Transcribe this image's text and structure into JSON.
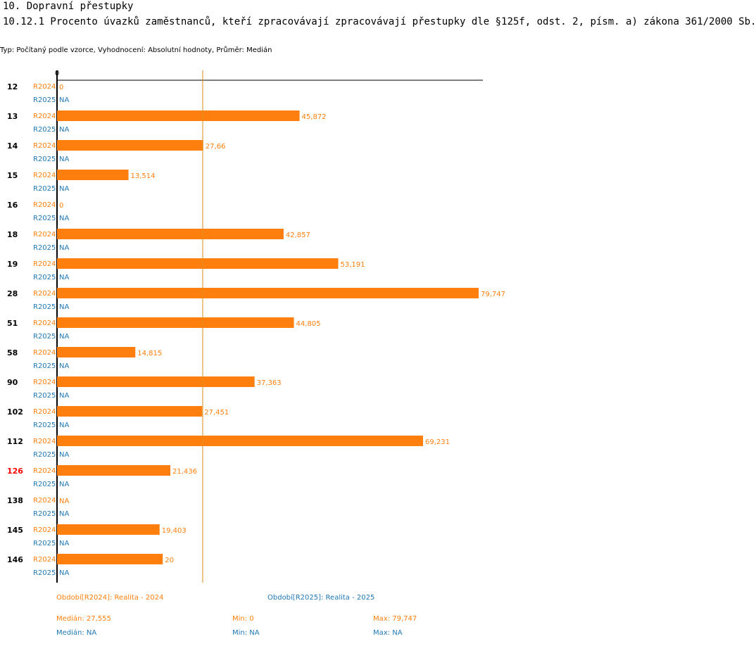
{
  "header": {
    "section": "10. Dopravní přestupky",
    "title": "10.12.1 Procento úvazků zaměstnanců, kteří zpracovávají zpracovávají přestupky dle §125f, odst. 2, písm. a) zákona 361/2000 Sb.",
    "subtitle": "Typ: Počítaný podle vzorce, Vyhodnocení: Absolutní hodnoty, Průměr: Medián"
  },
  "chart_data": {
    "type": "bar",
    "orientation": "horizontal",
    "x_axis_zero_label": "0",
    "xlim": [
      0,
      79.747
    ],
    "reference_line": {
      "type": "median",
      "value": 27.555
    },
    "highlighted_category": "126",
    "categories": [
      "12",
      "13",
      "14",
      "15",
      "16",
      "18",
      "19",
      "28",
      "51",
      "58",
      "90",
      "102",
      "112",
      "126",
      "138",
      "145",
      "146"
    ],
    "series": [
      {
        "name": "R2024",
        "color": "#ff7f0e",
        "values": [
          0,
          45.872,
          27.66,
          13.514,
          0,
          42.857,
          53.191,
          79.747,
          44.805,
          14.815,
          37.363,
          27.451,
          69.231,
          21.436,
          null,
          19.403,
          20
        ],
        "labels": [
          "0",
          "45,872",
          "27,66",
          "13,514",
          "0",
          "42,857",
          "53,191",
          "79,747",
          "44,805",
          "14,815",
          "37,363",
          "27,451",
          "69,231",
          "21,436",
          "NA",
          "19,403",
          "20"
        ]
      },
      {
        "name": "R2025",
        "color": "#1f77b4",
        "values": [
          null,
          null,
          null,
          null,
          null,
          null,
          null,
          null,
          null,
          null,
          null,
          null,
          null,
          null,
          null,
          null,
          null
        ],
        "labels": [
          "NA",
          "NA",
          "NA",
          "NA",
          "NA",
          "NA",
          "NA",
          "NA",
          "NA",
          "NA",
          "NA",
          "NA",
          "NA",
          "NA",
          "NA",
          "NA",
          "NA"
        ]
      }
    ]
  },
  "legend": {
    "r2024": "Období[R2024]: Realita - 2024",
    "r2025": "Období[R2025]: Realita - 2025"
  },
  "stats": {
    "r2024": {
      "median": "Medián: 27,555",
      "min": "Min: 0",
      "max": "Max: 79,747"
    },
    "r2025": {
      "median": "Medián: NA",
      "min": "Min: NA",
      "max": "Max: NA"
    }
  },
  "colors": {
    "r2024": "#ff7f0e",
    "r2025": "#1f77b4",
    "highlight": "#ff0000",
    "median_line": "#d98c1a"
  }
}
